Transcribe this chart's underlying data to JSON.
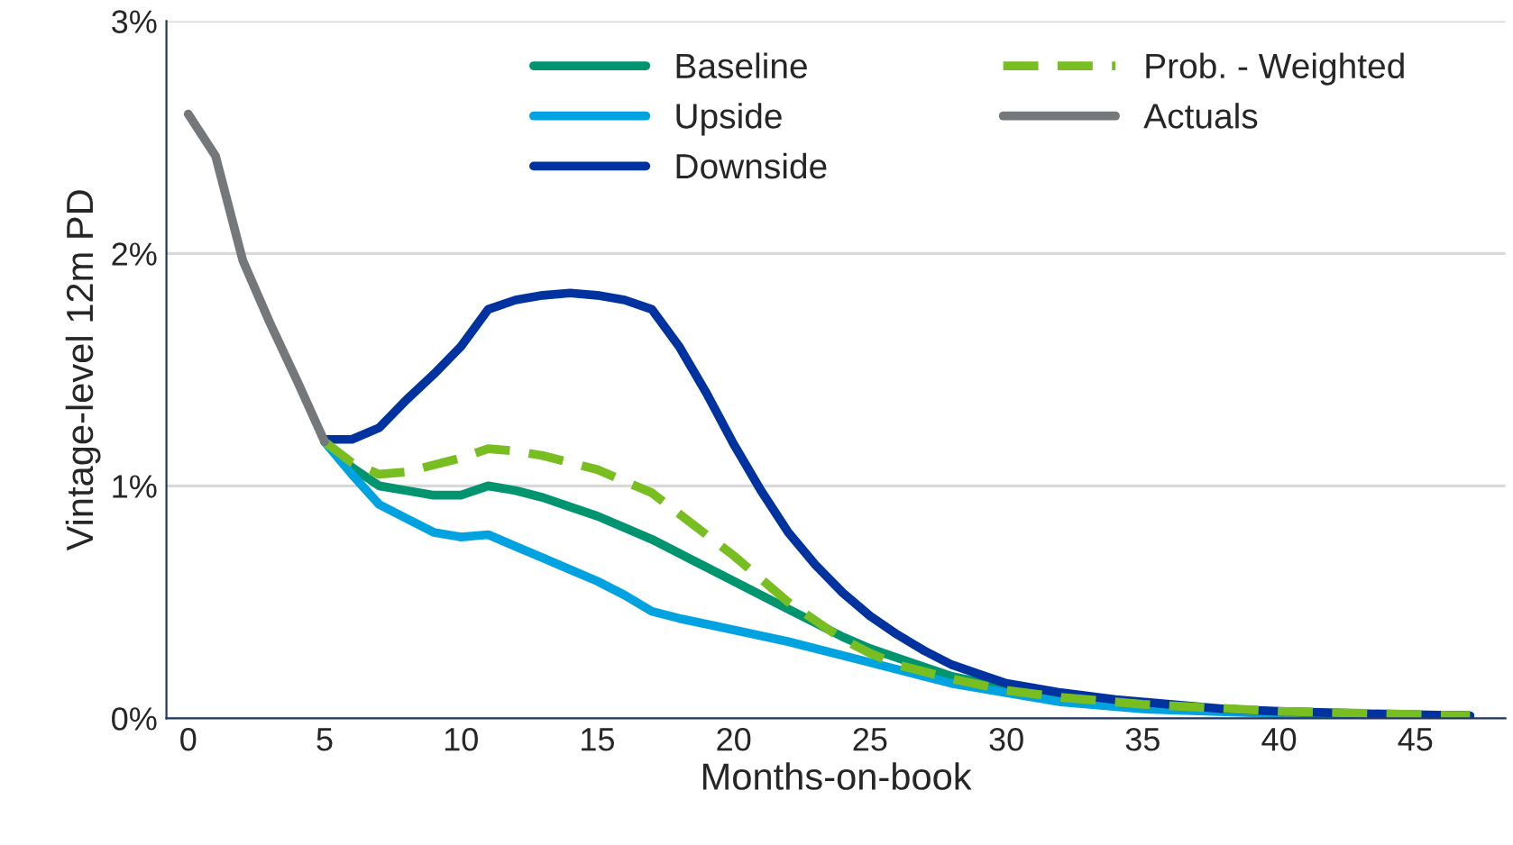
{
  "chart_data": {
    "type": "line",
    "xlabel": "Months-on-book",
    "ylabel": "Vintage-level 12m PD",
    "xlim": [
      -0.8,
      48.3
    ],
    "xticks": [
      0,
      5,
      10,
      15,
      20,
      25,
      30,
      35,
      40,
      45
    ],
    "ylim": [
      0,
      3
    ],
    "yticks": [
      {
        "value": 0,
        "label": "0%"
      },
      {
        "value": 1,
        "label": "1%"
      },
      {
        "value": 2,
        "label": "2%"
      },
      {
        "value": 3,
        "label": "3%"
      }
    ],
    "grid": "y",
    "legend": "top",
    "marker": "none",
    "series": [
      {
        "name": "Baseline",
        "color": "#00956e",
        "x": [
          5,
          6,
          7,
          8,
          9,
          10,
          11,
          12,
          13,
          14,
          15,
          16,
          17,
          18,
          19,
          20,
          21,
          22,
          23,
          24,
          25,
          26,
          27,
          28,
          30,
          32,
          35,
          40,
          47
        ],
        "values": [
          1.19,
          1.08,
          1.0,
          0.98,
          0.96,
          0.96,
          1.0,
          0.98,
          0.95,
          0.91,
          0.87,
          0.82,
          0.77,
          0.71,
          0.65,
          0.59,
          0.53,
          0.47,
          0.41,
          0.35,
          0.3,
          0.26,
          0.22,
          0.18,
          0.13,
          0.09,
          0.05,
          0.02,
          0.01
        ]
      },
      {
        "name": "Upside",
        "color": "#00a3e0",
        "x": [
          5,
          6,
          7,
          8,
          9,
          10,
          11,
          12,
          13,
          14,
          15,
          16,
          17,
          18,
          20,
          22,
          24,
          26,
          28,
          30,
          32,
          35,
          40,
          47
        ],
        "values": [
          1.19,
          1.05,
          0.92,
          0.86,
          0.8,
          0.78,
          0.79,
          0.74,
          0.69,
          0.64,
          0.59,
          0.53,
          0.46,
          0.43,
          0.38,
          0.33,
          0.27,
          0.21,
          0.15,
          0.11,
          0.07,
          0.04,
          0.02,
          0.01
        ]
      },
      {
        "name": "Downside",
        "color": "#0033a0",
        "x": [
          5,
          6,
          7,
          8,
          9,
          10,
          11,
          12,
          13,
          14,
          15,
          16,
          17,
          18,
          19,
          20,
          21,
          22,
          23,
          24,
          25,
          26,
          27,
          28,
          29,
          30,
          32,
          34,
          36,
          38,
          40,
          43,
          47
        ],
        "values": [
          1.2,
          1.2,
          1.25,
          1.37,
          1.48,
          1.6,
          1.76,
          1.8,
          1.82,
          1.83,
          1.82,
          1.8,
          1.76,
          1.6,
          1.4,
          1.18,
          0.98,
          0.8,
          0.66,
          0.54,
          0.44,
          0.36,
          0.29,
          0.23,
          0.19,
          0.15,
          0.11,
          0.08,
          0.06,
          0.04,
          0.03,
          0.02,
          0.01
        ]
      },
      {
        "name": "Prob. - Weighted",
        "color": "#78be20",
        "line_style": "dashed",
        "x": [
          5,
          6,
          7,
          8,
          9,
          10,
          11,
          12,
          13,
          14,
          15,
          16,
          17,
          18,
          19,
          20,
          21,
          22,
          23,
          24,
          25,
          26,
          28,
          30,
          32,
          35,
          40,
          47
        ],
        "values": [
          1.19,
          1.1,
          1.05,
          1.06,
          1.09,
          1.12,
          1.16,
          1.15,
          1.13,
          1.1,
          1.07,
          1.02,
          0.97,
          0.88,
          0.79,
          0.7,
          0.6,
          0.5,
          0.42,
          0.34,
          0.28,
          0.23,
          0.17,
          0.12,
          0.09,
          0.06,
          0.03,
          0.01
        ]
      },
      {
        "name": "Actuals",
        "color": "#75787b",
        "x": [
          0,
          1,
          2,
          3,
          4,
          5
        ],
        "values": [
          2.6,
          2.42,
          1.97,
          1.7,
          1.45,
          1.19
        ]
      }
    ]
  }
}
